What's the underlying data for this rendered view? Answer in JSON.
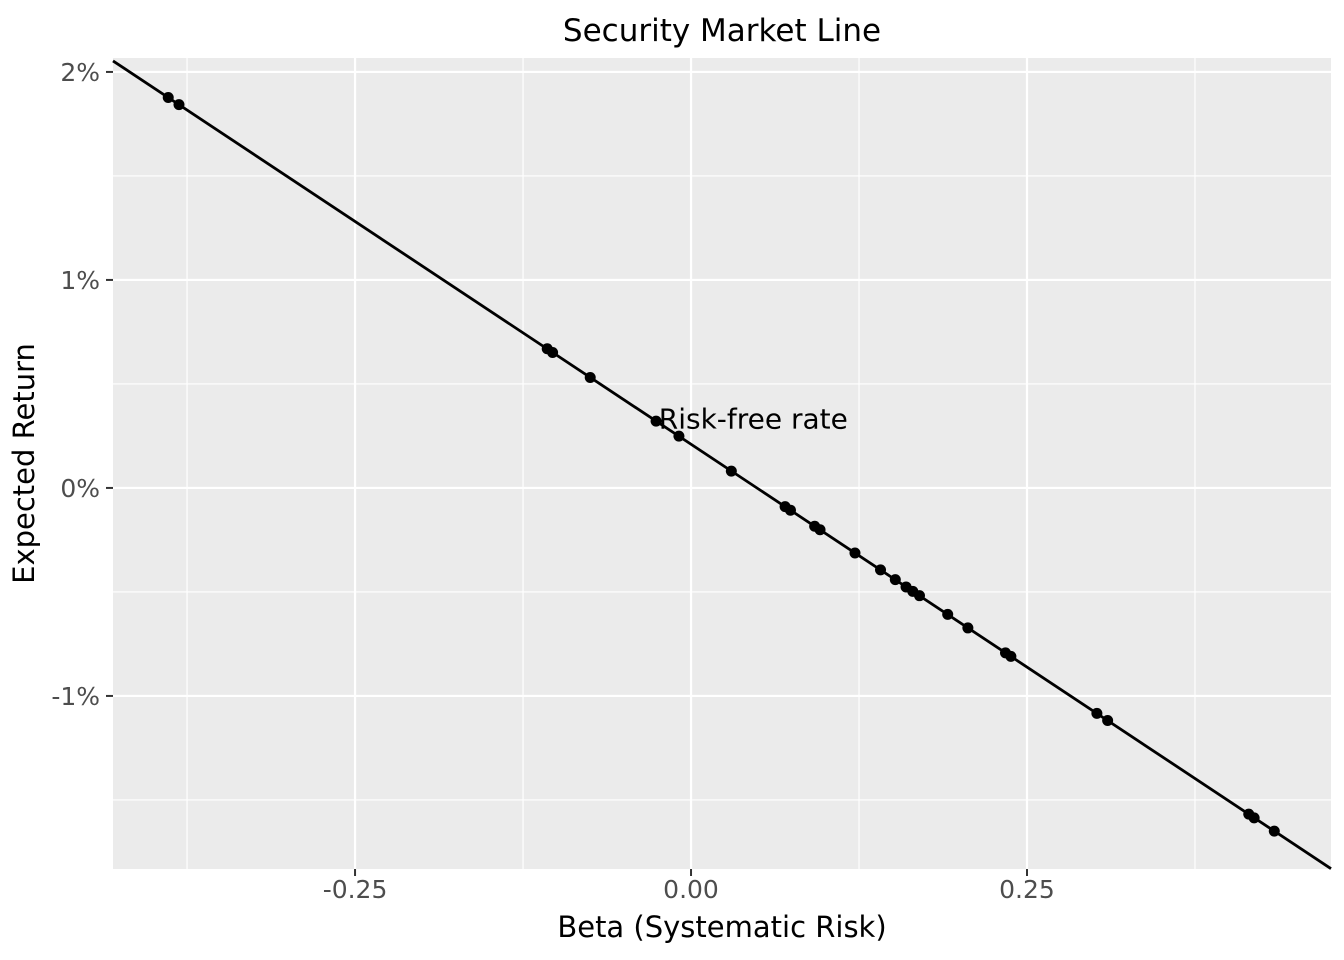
{
  "title": "Security Market Line",
  "axes": {
    "x_label": "Beta (Systematic Risk)",
    "y_label": "Expected Return"
  },
  "annotation": {
    "text": "Risk-free rate"
  },
  "colors": {
    "panel_background": "#EBEBEB",
    "grid_line": "#FFFFFF",
    "data_point": "#000000",
    "sml_line": "#000000",
    "tick_label_text": "#4D4D4D",
    "tick_mark": "#333333",
    "title_text": "#000000"
  },
  "chart_data": {
    "type": "scatter",
    "title": "Security Market Line",
    "xlabel": "Beta (Systematic Risk)",
    "ylabel": "Expected Return",
    "xlim": [
      -0.4301,
      0.4762
    ],
    "ylim": [
      -1.832,
      2.067
    ],
    "grid": true,
    "legend": false,
    "x_ticks": [
      {
        "value": -0.25,
        "label": "-0.25"
      },
      {
        "value": 0.0,
        "label": "0.00"
      },
      {
        "value": 0.25,
        "label": "0.25"
      }
    ],
    "y_ticks": [
      {
        "value": 2,
        "label": "2%"
      },
      {
        "value": 1,
        "label": "1%"
      },
      {
        "value": 0,
        "label": "0%"
      },
      {
        "value": -1,
        "label": "-1%"
      }
    ],
    "x_minor_ticks": [
      -0.375,
      -0.125,
      0.125,
      0.375
    ],
    "y_minor_ticks": [
      1.5,
      0.5,
      -0.5,
      -1.5
    ],
    "sml_line": {
      "intercept_pct": 0.21,
      "slope_pct_per_beta": -4.285
    },
    "annotation": {
      "text": "Risk-free rate",
      "x": -0.024,
      "y_pct": 0.33,
      "align": "left"
    },
    "points": [
      [
        -0.389,
        1.877
      ],
      [
        -0.381,
        1.843
      ],
      [
        -0.107,
        0.669
      ],
      [
        -0.103,
        0.651
      ],
      [
        -0.075,
        0.531
      ],
      [
        -0.026,
        0.321
      ],
      [
        -0.009,
        0.249
      ],
      [
        0.03,
        0.081
      ],
      [
        0.07,
        -0.09
      ],
      [
        0.074,
        -0.107
      ],
      [
        0.092,
        -0.184
      ],
      [
        0.096,
        -0.201
      ],
      [
        0.122,
        -0.313
      ],
      [
        0.141,
        -0.394
      ],
      [
        0.152,
        -0.441
      ],
      [
        0.16,
        -0.476
      ],
      [
        0.165,
        -0.497
      ],
      [
        0.17,
        -0.518
      ],
      [
        0.191,
        -0.608
      ],
      [
        0.206,
        -0.673
      ],
      [
        0.234,
        -0.793
      ],
      [
        0.238,
        -0.81
      ],
      [
        0.302,
        -1.084
      ],
      [
        0.31,
        -1.118
      ],
      [
        0.415,
        -1.568
      ],
      [
        0.419,
        -1.586
      ],
      [
        0.434,
        -1.65
      ]
    ]
  }
}
